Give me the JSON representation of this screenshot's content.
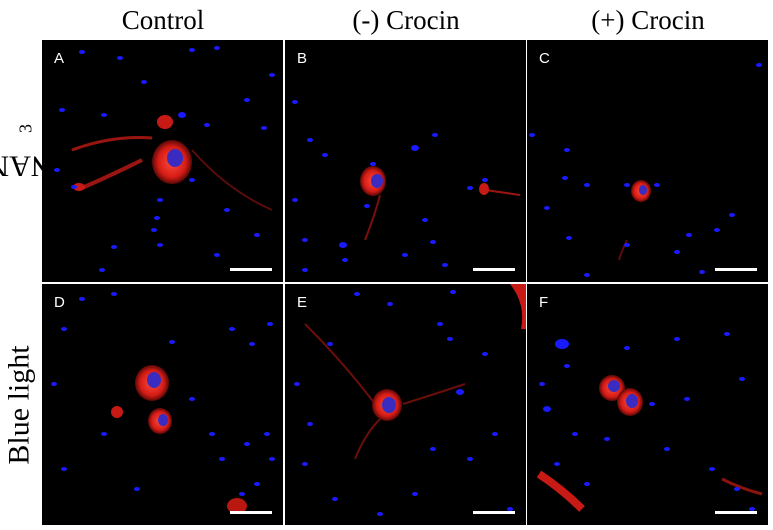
{
  "columns": [
    "Control",
    "(-) Crocin",
    "(+) Crocin"
  ],
  "rows": [
    {
      "label_main": "NAN",
      "label_sub": "3"
    },
    {
      "label_main": "Blue light",
      "label_sub": ""
    }
  ],
  "panels": [
    "A",
    "B",
    "C",
    "D",
    "E",
    "F"
  ],
  "colors": {
    "nucleus": "#1a1aff",
    "cell_body": "#e3221c",
    "background": "#000000",
    "scale_bar": "#ffffff"
  },
  "description": "Fluorescence micrographs: red-stained neurons with blue-stained nuclei on black background; each panel has a white scale bar."
}
